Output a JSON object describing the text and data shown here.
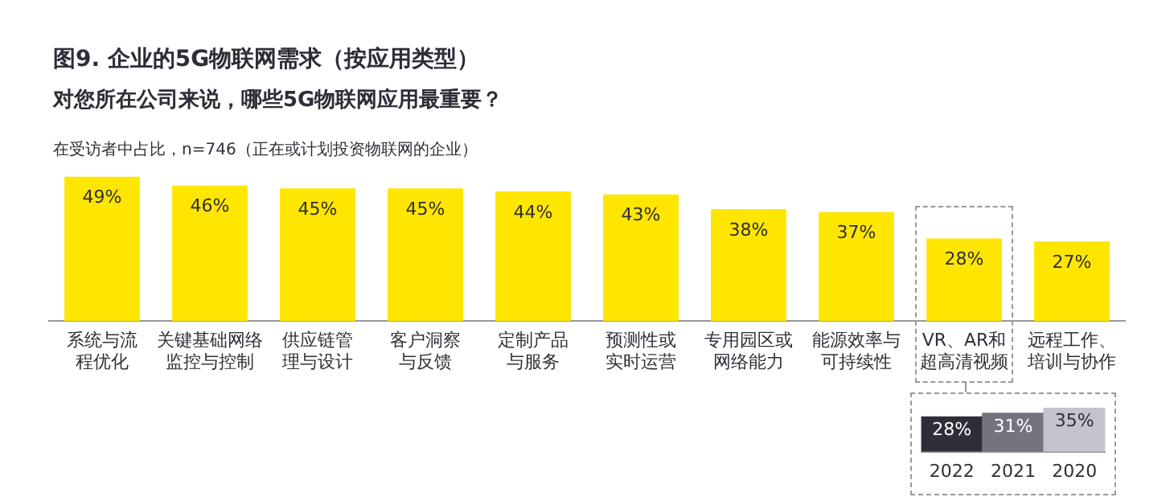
{
  "chart_data": [
    {
      "type": "bar",
      "title": "图9. 企业的5G物联网需求（按应用类型）",
      "subtitle": "对您所在公司来说，哪些5G物联网应用最重要？",
      "annotations": [
        "在受访者中占比，n=746（正在或计划投资物联网的企业）"
      ],
      "categories": [
        "系统与流程优化",
        "关键基础网络监控与控制",
        "供应链管理与设计",
        "客户洞察与反馈",
        "定制产品与服务",
        "预测性或实时运营",
        "专用园区或网络能力",
        "能源效率与可持续性",
        "VR、AR和超高清视频",
        "远程工作、培训与协作"
      ],
      "values": [
        49,
        46,
        45,
        45,
        44,
        43,
        38,
        37,
        28,
        27
      ],
      "value_labels": [
        "49%",
        "46%",
        "45%",
        "45%",
        "44%",
        "43%",
        "38%",
        "37%",
        "28%",
        "27%"
      ],
      "color": "#ffe600",
      "grid": false,
      "legend": false,
      "tick_labels": "x"
    },
    {
      "type": "bar",
      "categories": [
        "2022",
        "2021",
        "2020"
      ],
      "values": [
        28,
        31,
        35
      ],
      "value_labels": [
        "28%",
        "31%",
        "35%"
      ],
      "colors": [
        "#2e2e38",
        "#747480",
        "#c4c4cd"
      ],
      "grid": false,
      "legend": false,
      "tick_labels": "x"
    }
  ]
}
